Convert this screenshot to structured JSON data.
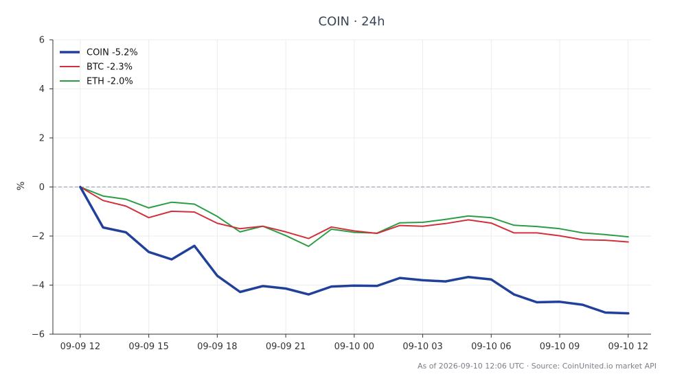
{
  "chart_data": {
    "type": "line",
    "title": "COIN · 24h",
    "ylabel": "%",
    "xlabel": "",
    "ylim": [
      -6,
      6
    ],
    "yticks": [
      -6,
      -4,
      -2,
      0,
      2,
      4,
      6
    ],
    "ytick_labels": [
      "−6",
      "−4",
      "−2",
      "0",
      "2",
      "4",
      "6"
    ],
    "x_range_hours": [
      -1.2,
      25.0
    ],
    "xticks": [
      {
        "label": "09-09 12",
        "hour": 0
      },
      {
        "label": "09-09 15",
        "hour": 3
      },
      {
        "label": "09-09 18",
        "hour": 6
      },
      {
        "label": "09-09 21",
        "hour": 9
      },
      {
        "label": "09-10 00",
        "hour": 12
      },
      {
        "label": "09-10 03",
        "hour": 15
      },
      {
        "label": "09-10 06",
        "hour": 18
      },
      {
        "label": "09-10 09",
        "hour": 21
      },
      {
        "label": "09-10 12",
        "hour": 24
      }
    ],
    "grid": true,
    "reference_line": 0,
    "legend_position": "top-left",
    "x_hours": [
      0,
      1,
      2,
      3,
      4,
      5,
      6,
      7,
      8,
      9,
      10,
      11,
      12,
      13,
      14,
      15,
      16,
      17,
      18,
      19,
      20,
      21,
      22,
      23,
      24
    ],
    "series": [
      {
        "name": "COIN -5.2%",
        "color": "#21409a",
        "width": 3.5,
        "values": [
          0,
          -1.65,
          -1.85,
          -2.65,
          -2.95,
          -2.4,
          -3.62,
          -4.28,
          -4.04,
          -4.14,
          -4.38,
          -4.06,
          -4.02,
          -4.03,
          -3.71,
          -3.8,
          -3.85,
          -3.67,
          -3.77,
          -4.38,
          -4.7,
          -4.68,
          -4.8,
          -5.12,
          -5.15
        ]
      },
      {
        "name": "BTC -2.3%",
        "color": "#d1303a",
        "width": 2,
        "values": [
          0,
          -0.55,
          -0.78,
          -1.25,
          -0.99,
          -1.02,
          -1.48,
          -1.7,
          -1.6,
          -1.83,
          -2.1,
          -1.63,
          -1.79,
          -1.89,
          -1.57,
          -1.6,
          -1.49,
          -1.34,
          -1.47,
          -1.87,
          -1.87,
          -1.99,
          -2.15,
          -2.17,
          -2.24
        ]
      },
      {
        "name": "ETH -2.0%",
        "color": "#2a9d44",
        "width": 2,
        "values": [
          0,
          -0.37,
          -0.5,
          -0.85,
          -0.62,
          -0.7,
          -1.2,
          -1.83,
          -1.6,
          -1.98,
          -2.42,
          -1.72,
          -1.85,
          -1.88,
          -1.46,
          -1.44,
          -1.32,
          -1.18,
          -1.25,
          -1.56,
          -1.61,
          -1.7,
          -1.87,
          -1.94,
          -2.03
        ]
      }
    ],
    "footer": "As of 2026-09-10 12:06 UTC · Source: CoinUnited.io market API"
  }
}
